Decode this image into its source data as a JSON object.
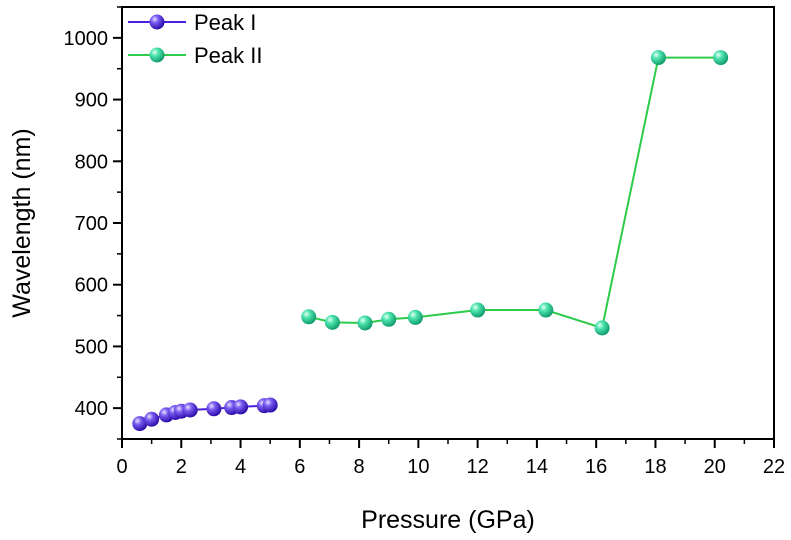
{
  "chart_data": {
    "type": "line",
    "title": "",
    "xlabel": "Pressure (GPa)",
    "ylabel": "Wavelength (nm)",
    "xlim": [
      0,
      22
    ],
    "ylim": [
      350,
      1050
    ],
    "xticks": [
      0,
      2,
      4,
      6,
      8,
      10,
      12,
      14,
      16,
      18,
      20,
      22
    ],
    "yticks": [
      400,
      500,
      600,
      700,
      800,
      900,
      1000
    ],
    "grid": false,
    "legend": "top-left",
    "series": [
      {
        "name": "Peak I",
        "color": "#4B1FE0",
        "x": [
          0.6,
          1.0,
          1.5,
          1.8,
          2.0,
          2.3,
          3.1,
          3.7,
          4.0,
          4.8,
          5.0
        ],
        "y": [
          375,
          382,
          389,
          393,
          395,
          397,
          399,
          401,
          402,
          404,
          405
        ]
      },
      {
        "name": "Peak II",
        "color": "#2DCB4A",
        "x": [
          6.3,
          7.1,
          8.2,
          9.0,
          9.9,
          12.0,
          14.3,
          16.2,
          18.1,
          20.2
        ],
        "y": [
          548,
          539,
          538,
          544,
          547,
          559,
          559,
          530,
          968,
          968
        ]
      }
    ]
  }
}
